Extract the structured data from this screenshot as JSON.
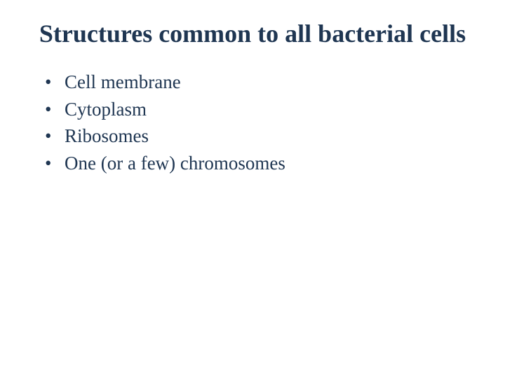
{
  "slide": {
    "title": "Structures common to all bacterial cells",
    "title_color": "#1f3652",
    "title_fontsize": 36,
    "title_fontweight": "bold",
    "bullets": [
      "Cell membrane",
      "Cytoplasm",
      "Ribosomes",
      "One (or a few) chromosomes"
    ],
    "bullet_color": "#1f3652",
    "bullet_fontsize": 27,
    "bullet_marker": "•",
    "background_color": "#ffffff"
  }
}
